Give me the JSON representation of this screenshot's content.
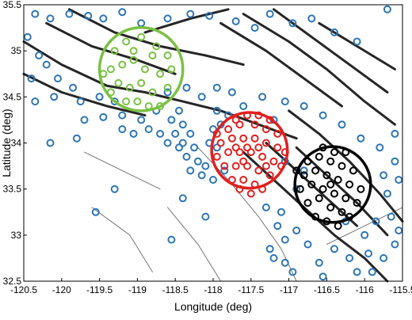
{
  "chart_data": {
    "type": "scatter",
    "title": "",
    "xlabel": "Longitude (deg)",
    "ylabel": "Latitude (deg)",
    "xlim": [
      -120.5,
      -115.5
    ],
    "ylim": [
      32.5,
      35.5
    ],
    "xticks": [
      "-120.5",
      "-120",
      "-119.5",
      "-119",
      "-118.5",
      "-118",
      "-117.5",
      "-117",
      "-116.5",
      "-116",
      "-115.5"
    ],
    "yticks": [
      "32.5",
      "33",
      "33.5",
      "34",
      "34.5",
      "35",
      "35.5"
    ],
    "grid": false,
    "legend": "none",
    "colors": {
      "stations": "#2e75b6",
      "green": "#7ac143",
      "red": "#e02020",
      "black": "#000000",
      "faults": "#1a1a1a"
    },
    "circles": [
      {
        "center": [
          -118.95,
          34.8
        ],
        "radius_deg": 0.55,
        "color": "green"
      },
      {
        "center": [
          -117.52,
          33.92
        ],
        "radius_deg": 0.5,
        "color": "red"
      },
      {
        "center": [
          -116.42,
          33.55
        ],
        "radius_deg": 0.5,
        "color": "black"
      }
    ],
    "series": [
      {
        "color": "stations",
        "points": [
          [
            -120.35,
            35.4
          ],
          [
            -120.15,
            35.35
          ],
          [
            -119.9,
            35.4
          ],
          [
            -119.65,
            35.38
          ],
          [
            -119.45,
            35.35
          ],
          [
            -119.2,
            35.42
          ],
          [
            -118.95,
            35.3
          ],
          [
            -118.6,
            35.35
          ],
          [
            -118.3,
            35.4
          ],
          [
            -118.05,
            35.38
          ],
          [
            -117.7,
            35.32
          ],
          [
            -117.45,
            35.25
          ],
          [
            -117.25,
            35.4
          ],
          [
            -116.95,
            35.3
          ],
          [
            -116.7,
            35.35
          ],
          [
            -116.4,
            35.2
          ],
          [
            -116.1,
            35.1
          ],
          [
            -115.7,
            35.45
          ],
          [
            -120.45,
            35.15
          ],
          [
            -120.3,
            34.95
          ],
          [
            -120.4,
            34.7
          ],
          [
            -120.2,
            34.85
          ],
          [
            -120.05,
            34.7
          ],
          [
            -119.85,
            34.6
          ],
          [
            -120.35,
            34.45
          ],
          [
            -120.1,
            34.5
          ],
          [
            -119.75,
            34.45
          ],
          [
            -119.5,
            34.5
          ],
          [
            -119.3,
            34.45
          ],
          [
            -119.7,
            34.25
          ],
          [
            -119.45,
            34.28
          ],
          [
            -119.2,
            34.3
          ],
          [
            -118.95,
            34.25
          ],
          [
            -118.75,
            34.35
          ],
          [
            -118.6,
            34.55
          ],
          [
            -118.35,
            34.6
          ],
          [
            -118.15,
            34.5
          ],
          [
            -117.95,
            34.6
          ],
          [
            -117.75,
            34.55
          ],
          [
            -117.6,
            34.4
          ],
          [
            -117.35,
            34.5
          ],
          [
            -117.2,
            34.25
          ],
          [
            -117.05,
            34.45
          ],
          [
            -116.8,
            34.4
          ],
          [
            -116.55,
            34.3
          ],
          [
            -116.3,
            34.2
          ],
          [
            -116.05,
            34.05
          ],
          [
            -115.8,
            33.95
          ],
          [
            -115.6,
            34.1
          ],
          [
            -118.45,
            34.35
          ],
          [
            -118.4,
            34.2
          ],
          [
            -118.5,
            34.1
          ],
          [
            -118.55,
            34.25
          ],
          [
            -118.3,
            34.1
          ],
          [
            -118.25,
            33.95
          ],
          [
            -118.35,
            33.85
          ],
          [
            -118.45,
            33.95
          ],
          [
            -118.2,
            33.8
          ],
          [
            -118.1,
            33.75
          ],
          [
            -118.3,
            33.7
          ],
          [
            -118.15,
            33.65
          ],
          [
            -118.4,
            34.0
          ],
          [
            -118.05,
            34.0
          ],
          [
            -118.0,
            34.15
          ],
          [
            -117.95,
            33.95
          ],
          [
            -118.6,
            34.0
          ],
          [
            -118.7,
            34.1
          ],
          [
            -118.85,
            34.15
          ],
          [
            -119.05,
            34.1
          ],
          [
            -119.2,
            34.15
          ],
          [
            -117.85,
            33.7
          ],
          [
            -118.0,
            33.6
          ],
          [
            -117.9,
            34.2
          ],
          [
            -117.8,
            34.3
          ],
          [
            -117.95,
            34.35
          ],
          [
            -119.8,
            34.05
          ],
          [
            -120.15,
            34.0
          ],
          [
            -119.3,
            33.5
          ],
          [
            -119.55,
            33.25
          ],
          [
            -118.4,
            33.4
          ],
          [
            -118.55,
            32.95
          ],
          [
            -118.1,
            33.2
          ],
          [
            -117.3,
            33.3
          ],
          [
            -117.15,
            33.1
          ],
          [
            -117.05,
            32.95
          ],
          [
            -117.2,
            32.75
          ],
          [
            -116.95,
            32.6
          ],
          [
            -117.05,
            32.7
          ],
          [
            -117.25,
            32.85
          ],
          [
            -117.1,
            33.25
          ],
          [
            -116.9,
            33.05
          ],
          [
            -116.75,
            32.9
          ],
          [
            -116.6,
            32.7
          ],
          [
            -116.4,
            32.85
          ],
          [
            -116.2,
            32.75
          ],
          [
            -115.95,
            32.8
          ],
          [
            -115.75,
            32.75
          ],
          [
            -115.6,
            32.9
          ],
          [
            -115.55,
            33.05
          ],
          [
            -115.65,
            33.2
          ],
          [
            -115.85,
            33.15
          ],
          [
            -116.0,
            33.0
          ],
          [
            -116.25,
            33.15
          ],
          [
            -115.7,
            33.45
          ],
          [
            -115.55,
            33.6
          ],
          [
            -115.6,
            33.8
          ],
          [
            -115.75,
            33.65
          ],
          [
            -116.9,
            33.5
          ],
          [
            -116.8,
            33.7
          ],
          [
            -117.05,
            33.8
          ],
          [
            -116.1,
            32.6
          ],
          [
            -115.9,
            32.6
          ],
          [
            -116.55,
            32.55
          ]
        ]
      },
      {
        "color": "green",
        "points": [
          [
            -119.3,
            35.0
          ],
          [
            -119.15,
            35.1
          ],
          [
            -118.95,
            35.15
          ],
          [
            -118.75,
            35.05
          ],
          [
            -118.6,
            34.95
          ],
          [
            -119.35,
            34.8
          ],
          [
            -119.2,
            34.85
          ],
          [
            -119.05,
            34.9
          ],
          [
            -118.9,
            34.8
          ],
          [
            -118.7,
            34.75
          ],
          [
            -119.25,
            34.65
          ],
          [
            -119.1,
            34.6
          ],
          [
            -118.95,
            34.65
          ],
          [
            -118.8,
            34.55
          ],
          [
            -118.6,
            34.6
          ],
          [
            -119.0,
            34.45
          ],
          [
            -118.85,
            34.4
          ],
          [
            -118.7,
            34.4
          ],
          [
            -119.15,
            34.45
          ],
          [
            -119.35,
            34.55
          ],
          [
            -118.55,
            34.8
          ],
          [
            -119.05,
            35.0
          ],
          [
            -118.8,
            34.95
          ],
          [
            -119.45,
            34.75
          ]
        ]
      },
      {
        "color": "red",
        "points": [
          [
            -117.8,
            34.15
          ],
          [
            -117.65,
            34.2
          ],
          [
            -117.45,
            34.2
          ],
          [
            -117.3,
            34.15
          ],
          [
            -117.15,
            34.1
          ],
          [
            -117.9,
            34.0
          ],
          [
            -117.75,
            34.05
          ],
          [
            -117.6,
            34.05
          ],
          [
            -117.45,
            34.05
          ],
          [
            -117.3,
            34.0
          ],
          [
            -117.15,
            33.95
          ],
          [
            -117.05,
            33.9
          ],
          [
            -117.95,
            33.85
          ],
          [
            -117.8,
            33.9
          ],
          [
            -117.65,
            33.9
          ],
          [
            -117.5,
            33.9
          ],
          [
            -117.35,
            33.85
          ],
          [
            -117.2,
            33.8
          ],
          [
            -117.1,
            33.75
          ],
          [
            -117.85,
            33.75
          ],
          [
            -117.7,
            33.75
          ],
          [
            -117.55,
            33.75
          ],
          [
            -117.4,
            33.7
          ],
          [
            -117.25,
            33.65
          ],
          [
            -117.75,
            33.6
          ],
          [
            -117.6,
            33.6
          ],
          [
            -117.45,
            33.55
          ],
          [
            -117.35,
            33.5
          ],
          [
            -117.65,
            33.5
          ],
          [
            -117.5,
            33.45
          ],
          [
            -117.7,
            34.25
          ],
          [
            -117.55,
            34.3
          ],
          [
            -117.4,
            34.3
          ],
          [
            -117.95,
            34.1
          ],
          [
            -117.25,
            34.25
          ],
          [
            -117.55,
            33.95
          ],
          [
            -117.4,
            33.95
          ],
          [
            -117.7,
            33.95
          ],
          [
            -117.3,
            33.75
          ],
          [
            -117.6,
            33.8
          ]
        ]
      },
      {
        "color": "black",
        "points": [
          [
            -116.75,
            33.8
          ],
          [
            -116.6,
            33.85
          ],
          [
            -116.45,
            33.8
          ],
          [
            -116.3,
            33.75
          ],
          [
            -116.15,
            33.7
          ],
          [
            -116.8,
            33.65
          ],
          [
            -116.65,
            33.7
          ],
          [
            -116.5,
            33.65
          ],
          [
            -116.35,
            33.6
          ],
          [
            -116.2,
            33.55
          ],
          [
            -116.05,
            33.5
          ],
          [
            -116.85,
            33.5
          ],
          [
            -116.7,
            33.55
          ],
          [
            -116.55,
            33.5
          ],
          [
            -116.4,
            33.45
          ],
          [
            -116.25,
            33.4
          ],
          [
            -116.1,
            33.35
          ],
          [
            -116.75,
            33.35
          ],
          [
            -116.6,
            33.4
          ],
          [
            -116.45,
            33.3
          ],
          [
            -116.3,
            33.25
          ],
          [
            -116.5,
            33.15
          ],
          [
            -116.65,
            33.2
          ],
          [
            -116.35,
            33.1
          ],
          [
            -116.2,
            33.2
          ],
          [
            -116.55,
            33.95
          ],
          [
            -116.4,
            33.9
          ],
          [
            -116.25,
            33.9
          ],
          [
            -116.9,
            33.7
          ],
          [
            -116.45,
            33.55
          ]
        ]
      }
    ]
  }
}
